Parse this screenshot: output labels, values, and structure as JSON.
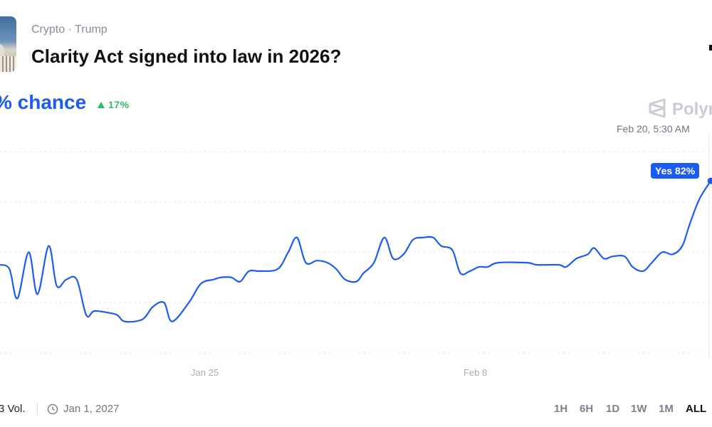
{
  "header": {
    "categories": "Crypto · Trump",
    "title": "Clarity Act signed into law in 2026?",
    "chance_label": "% chance",
    "change": "17%",
    "brand": "Polym"
  },
  "chart": {
    "hover_time": "Feb 20, 5:30 AM",
    "tooltip": "Yes 82%",
    "x_ticks": [
      "Jan 25",
      "Feb 8"
    ]
  },
  "footer": {
    "volume": "3 Vol.",
    "end_date": "Jan 1, 2027",
    "ranges": [
      "1H",
      "6H",
      "1D",
      "1W",
      "1M",
      "ALL"
    ],
    "active_range": "ALL"
  },
  "colors": {
    "line": "#1d5cf0",
    "up": "#2fbd63",
    "grid": "#d9dce1"
  },
  "icons": {
    "thumbnail": "capitol-building-image",
    "change": "triangle-up-icon",
    "brand": "polymarket-logo",
    "end_date": "clock-icon"
  },
  "chart_data": {
    "type": "line",
    "series": [
      {
        "name": "Yes",
        "points": [
          [
            "2026-01-14T06:00",
            42
          ],
          [
            "2026-01-14T18:00",
            40
          ],
          [
            "2026-01-15T04:00",
            26
          ],
          [
            "2026-01-15T18:00",
            48
          ],
          [
            "2026-01-16T05:00",
            28
          ],
          [
            "2026-01-16T19:00",
            51
          ],
          [
            "2026-01-17T05:00",
            32
          ],
          [
            "2026-01-17T17:00",
            35
          ],
          [
            "2026-01-18T06:00",
            35
          ],
          [
            "2026-01-18T18:00",
            18
          ],
          [
            "2026-01-19T04:00",
            20
          ],
          [
            "2026-01-20T00:00",
            19
          ],
          [
            "2026-01-20T09:00",
            18
          ],
          [
            "2026-01-20T18:00",
            15
          ],
          [
            "2026-01-21T16:00",
            16
          ],
          [
            "2026-01-22T05:00",
            22
          ],
          [
            "2026-01-22T19:00",
            24
          ],
          [
            "2026-01-23T05:00",
            15
          ],
          [
            "2026-01-24T02:00",
            24
          ],
          [
            "2026-01-24T17:00",
            33
          ],
          [
            "2026-01-25T09:00",
            35
          ],
          [
            "2026-01-25T18:00",
            36
          ],
          [
            "2026-01-26T07:00",
            36
          ],
          [
            "2026-01-26T18:00",
            34
          ],
          [
            "2026-01-27T05:00",
            39
          ],
          [
            "2026-01-27T19:00",
            39
          ],
          [
            "2026-01-28T17:00",
            40
          ],
          [
            "2026-01-29T06:00",
            48
          ],
          [
            "2026-01-29T17:00",
            55
          ],
          [
            "2026-01-30T04:00",
            43
          ],
          [
            "2026-01-30T18:00",
            44
          ],
          [
            "2026-01-31T07:00",
            43
          ],
          [
            "2026-01-31T18:00",
            40
          ],
          [
            "2026-02-01T05:00",
            35
          ],
          [
            "2026-02-01T19:00",
            34
          ],
          [
            "2026-02-02T04:00",
            38
          ],
          [
            "2026-02-02T17:00",
            43
          ],
          [
            "2026-02-03T06:00",
            55
          ],
          [
            "2026-02-03T17:00",
            45
          ],
          [
            "2026-02-04T06:00",
            47
          ],
          [
            "2026-02-04T18:00",
            54
          ],
          [
            "2026-02-05T07:00",
            55
          ],
          [
            "2026-02-05T19:00",
            55
          ],
          [
            "2026-02-06T05:00",
            51
          ],
          [
            "2026-02-06T19:00",
            49
          ],
          [
            "2026-02-07T05:00",
            38
          ],
          [
            "2026-02-07T17:00",
            39
          ],
          [
            "2026-02-08T04:00",
            41
          ],
          [
            "2026-02-08T15:00",
            41
          ],
          [
            "2026-02-09T04:00",
            43
          ],
          [
            "2026-02-10T16:00",
            43
          ],
          [
            "2026-02-11T05:00",
            42
          ],
          [
            "2026-02-12T08:00",
            42
          ],
          [
            "2026-02-12T17:00",
            41
          ],
          [
            "2026-02-13T06:00",
            45
          ],
          [
            "2026-02-13T20:00",
            47
          ],
          [
            "2026-02-14T04:00",
            50
          ],
          [
            "2026-02-14T16:00",
            45
          ],
          [
            "2026-02-15T03:00",
            46
          ],
          [
            "2026-02-15T18:00",
            46
          ],
          [
            "2026-02-16T04:00",
            41
          ],
          [
            "2026-02-16T17:00",
            39
          ],
          [
            "2026-02-17T04:00",
            43
          ],
          [
            "2026-02-17T17:00",
            48
          ],
          [
            "2026-02-18T06:00",
            47
          ],
          [
            "2026-02-18T18:00",
            51
          ],
          [
            "2026-02-19T03:00",
            61
          ],
          [
            "2026-02-19T15:00",
            73
          ],
          [
            "2026-02-20T05:30",
            82
          ]
        ]
      }
    ],
    "x_ticks": [
      "Jan 25",
      "Feb 8"
    ],
    "y_unit": "%",
    "grid": true,
    "legend": "none"
  }
}
